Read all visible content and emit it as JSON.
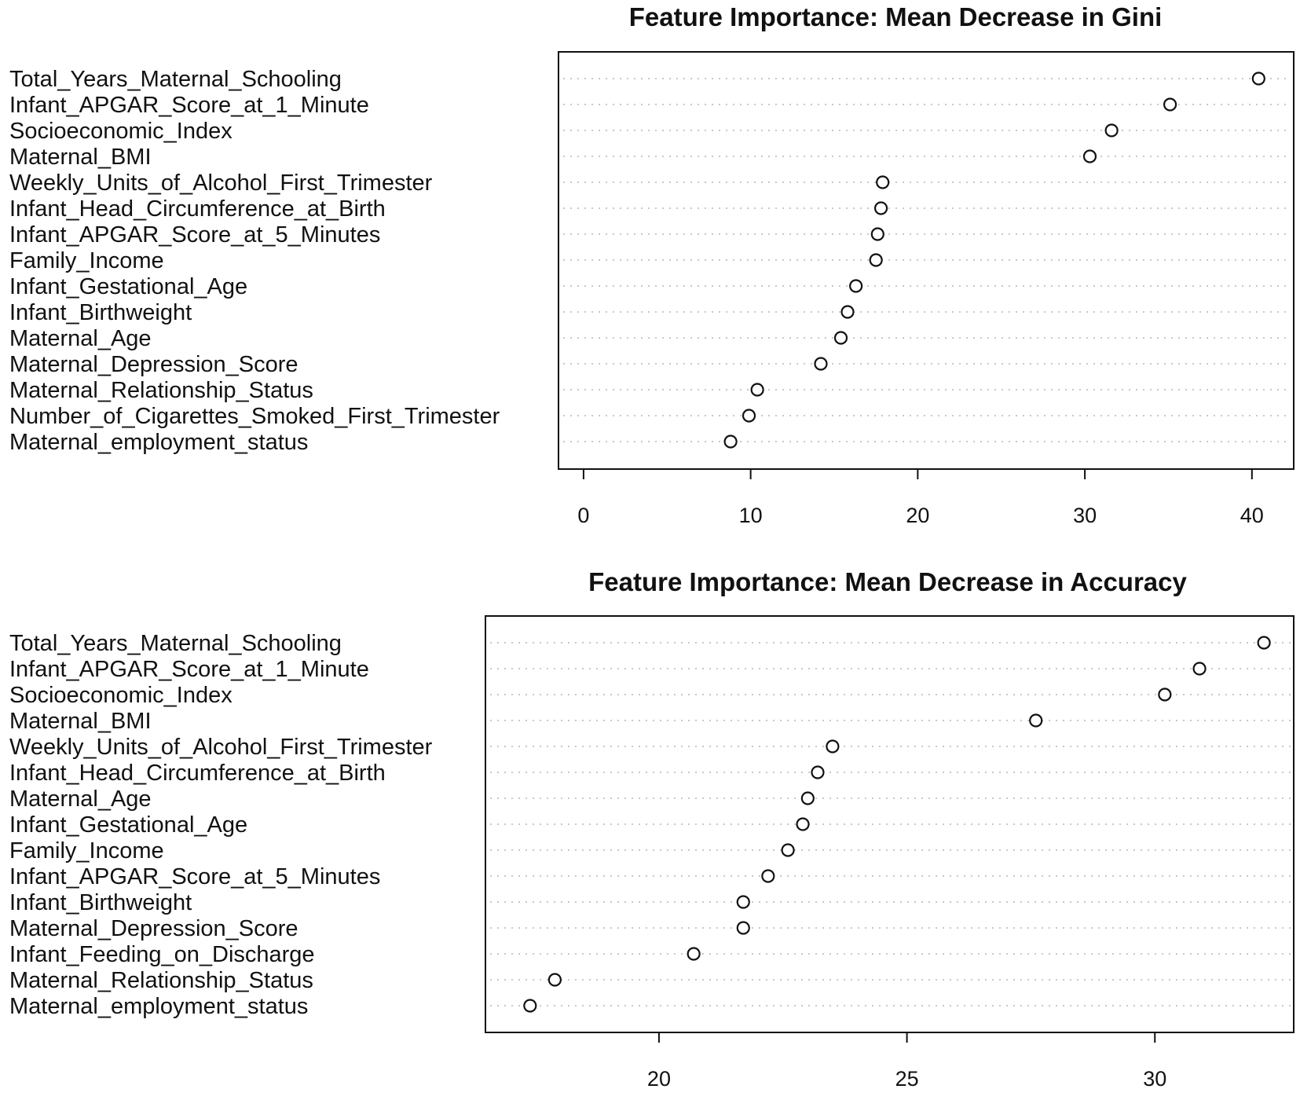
{
  "chart_data": [
    {
      "type": "dot",
      "title": "Feature Importance: Mean Decrease in Gini",
      "xlabel": "",
      "ylabel": "",
      "xlim": [
        -1.5,
        42.5
      ],
      "xticks": [
        0,
        10,
        20,
        30,
        40
      ],
      "grid": false,
      "categories": [
        "Total_Years_Maternal_Schooling",
        "Infant_APGAR_Score_at_1_Minute",
        "Socioeconomic_Index",
        "Maternal_BMI",
        "Weekly_Units_of_Alcohol_First_Trimester",
        "Infant_Head_Circumference_at_Birth",
        "Infant_APGAR_Score_at_5_Minutes",
        "Family_Income",
        "Infant_Gestational_Age",
        "Infant_Birthweight",
        "Maternal_Age",
        "Maternal_Depression_Score",
        "Maternal_Relationship_Status",
        "Number_of_Cigarettes_Smoked_First_Trimester",
        "Maternal_employment_status"
      ],
      "values": [
        40.4,
        35.1,
        31.6,
        30.3,
        17.9,
        17.8,
        17.6,
        17.5,
        16.3,
        15.8,
        15.4,
        14.2,
        10.4,
        9.9,
        8.8
      ]
    },
    {
      "type": "dot",
      "title": "Feature Importance: Mean Decrease in Accuracy",
      "xlabel": "",
      "ylabel": "",
      "xlim": [
        16.5,
        32.8
      ],
      "xticks": [
        20,
        25,
        30
      ],
      "grid": false,
      "categories": [
        "Total_Years_Maternal_Schooling",
        "Infant_APGAR_Score_at_1_Minute",
        "Socioeconomic_Index",
        "Maternal_BMI",
        "Weekly_Units_of_Alcohol_First_Trimester",
        "Infant_Head_Circumference_at_Birth",
        "Maternal_Age",
        "Infant_Gestational_Age",
        "Family_Income",
        "Infant_APGAR_Score_at_5_Minutes",
        "Infant_Birthweight",
        "Maternal_Depression_Score",
        "Infant_Feeding_on_Discharge",
        "Maternal_Relationship_Status",
        "Maternal_employment_status"
      ],
      "values": [
        32.2,
        30.9,
        30.2,
        27.6,
        23.5,
        23.2,
        23.0,
        22.9,
        22.6,
        22.2,
        21.7,
        21.7,
        20.7,
        17.9,
        17.4
      ]
    }
  ]
}
